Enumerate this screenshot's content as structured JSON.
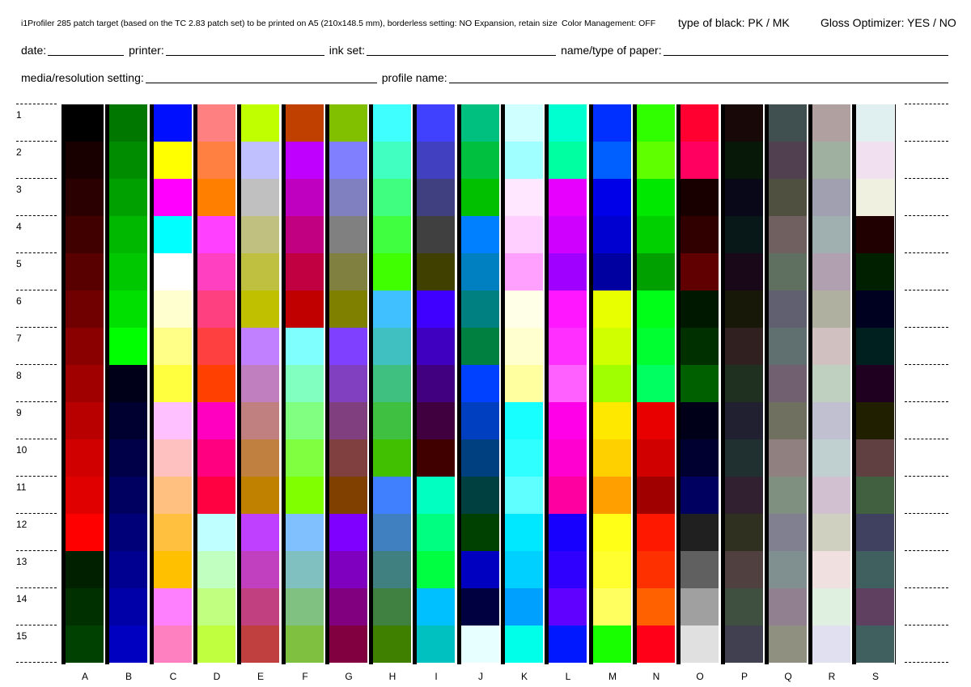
{
  "header": {
    "title": "i1Profiler 285 patch target (based on the TC 2.83 patch set) to be printed on A5 (210x148.5 mm), borderless setting: NO Expansion, retain size",
    "color_management": "Color Management: OFF",
    "type_of_black": "type of black:  PK / MK",
    "gloss_optimizer": "Gloss Optimizer: YES / NO"
  },
  "fields_row1": [
    {
      "label": "date:",
      "width": 94
    },
    {
      "label": "printer:",
      "width": 196
    },
    {
      "label": "ink set:",
      "width": 234
    },
    {
      "label": "name/type of paper:",
      "width": 0
    }
  ],
  "fields_row2": [
    {
      "label": "media/resolution setting:",
      "width": 286
    },
    {
      "label": "profile name:",
      "width": 0
    }
  ],
  "rows": [
    "1",
    "2",
    "3",
    "4",
    "5",
    "6",
    "7",
    "8",
    "9",
    "10",
    "11",
    "12",
    "13",
    "14",
    "15"
  ],
  "columns": [
    {
      "label": "A",
      "patches": [
        "#000000",
        "#180000",
        "#2a0000",
        "#400000",
        "#580000",
        "#700000",
        "#8a0000",
        "#a00000",
        "#b80000",
        "#d00000",
        "#e00000",
        "#fe0000",
        "#002000",
        "#003000",
        "#004000"
      ]
    },
    {
      "label": "B",
      "patches": [
        "#007800",
        "#008c00",
        "#00a000",
        "#00b800",
        "#00c800",
        "#00e000",
        "#00ff00",
        "#000018",
        "#000030",
        "#000048",
        "#000060",
        "#000078",
        "#000090",
        "#0000a8",
        "#0000c0"
      ]
    },
    {
      "label": "C",
      "patches": [
        "#0010ff",
        "#ffff00",
        "#ff00ff",
        "#00ffff",
        "#ffffff",
        "#ffffd0",
        "#ffff88",
        "#ffff40",
        "#ffc0ff",
        "#ffc0c0",
        "#ffc080",
        "#ffc040",
        "#ffc000",
        "#ff80ff",
        "#ff80c0"
      ]
    },
    {
      "label": "D",
      "patches": [
        "#ff8080",
        "#ff8040",
        "#ff8000",
        "#ff40ff",
        "#ff40c0",
        "#ff4080",
        "#ff4040",
        "#ff4000",
        "#ff00c0",
        "#ff0080",
        "#ff0040",
        "#c0ffff",
        "#c0ffc0",
        "#c0ff80",
        "#c0ff40"
      ]
    },
    {
      "label": "E",
      "patches": [
        "#c0ff00",
        "#c0c0ff",
        "#c0c0c0",
        "#c0c080",
        "#c0c040",
        "#c0c000",
        "#c080ff",
        "#c080c0",
        "#c08080",
        "#c08040",
        "#c08000",
        "#c040ff",
        "#c040c0",
        "#c04080",
        "#c04040"
      ]
    },
    {
      "label": "F",
      "patches": [
        "#c04000",
        "#c000ff",
        "#c000c0",
        "#c00080",
        "#c00040",
        "#c00000",
        "#80ffff",
        "#80ffc0",
        "#80ff80",
        "#80ff40",
        "#80ff00",
        "#80c0ff",
        "#80c0c0",
        "#80c080",
        "#80c040"
      ]
    },
    {
      "label": "G",
      "patches": [
        "#80c000",
        "#8080ff",
        "#8080c0",
        "#808080",
        "#808040",
        "#808000",
        "#8040ff",
        "#8040c0",
        "#804080",
        "#804040",
        "#804000",
        "#8000ff",
        "#8000c0",
        "#800080",
        "#800040"
      ]
    },
    {
      "label": "H",
      "patches": [
        "#40ffff",
        "#40ffc0",
        "#40ff80",
        "#40ff40",
        "#40ff00",
        "#40c0ff",
        "#40c0c0",
        "#40c080",
        "#40c040",
        "#40c000",
        "#4080ff",
        "#4080c0",
        "#408080",
        "#408040",
        "#408000"
      ]
    },
    {
      "label": "I",
      "patches": [
        "#4040ff",
        "#4040c0",
        "#404080",
        "#404040",
        "#404000",
        "#4000ff",
        "#4000c0",
        "#400080",
        "#400040",
        "#400000",
        "#00ffc0",
        "#00ff80",
        "#00ff40",
        "#00c0ff",
        "#00c0c0"
      ]
    },
    {
      "label": "J",
      "patches": [
        "#00c080",
        "#00c040",
        "#00c000",
        "#0080ff",
        "#0080c0",
        "#008080",
        "#008040",
        "#0040ff",
        "#0040c0",
        "#004080",
        "#004040",
        "#004000",
        "#0000c0",
        "#000040",
        "#e8ffff"
      ]
    },
    {
      "label": "K",
      "patches": [
        "#d0ffff",
        "#a0ffff",
        "#ffe8ff",
        "#ffd0ff",
        "#ffa0ff",
        "#ffffe8",
        "#ffffd0",
        "#ffffa0",
        "#18ffff",
        "#30ffff",
        "#60ffff",
        "#00e8ff",
        "#00d0ff",
        "#00a0ff",
        "#00ffe8"
      ]
    },
    {
      "label": "L",
      "patches": [
        "#00ffd0",
        "#00ffa0",
        "#e800ff",
        "#d000ff",
        "#a000ff",
        "#ff18ff",
        "#ff30ff",
        "#ff60ff",
        "#ff00e8",
        "#ff00d0",
        "#ff00a0",
        "#1800ff",
        "#3000ff",
        "#6000ff",
        "#0018ff"
      ]
    },
    {
      "label": "M",
      "patches": [
        "#0030ff",
        "#0060ff",
        "#0000e8",
        "#0000d0",
        "#0000a0",
        "#e8ff00",
        "#d0ff00",
        "#a0ff00",
        "#ffe800",
        "#ffd000",
        "#ffa000",
        "#ffff18",
        "#ffff30",
        "#ffff60",
        "#18ff00"
      ]
    },
    {
      "label": "N",
      "patches": [
        "#30ff00",
        "#60ff00",
        "#00e800",
        "#00d000",
        "#00a000",
        "#00ff18",
        "#00ff30",
        "#00ff60",
        "#e80000",
        "#d00000",
        "#a00000",
        "#ff1800",
        "#ff3000",
        "#ff6000",
        "#ff0018"
      ]
    },
    {
      "label": "O",
      "patches": [
        "#ff0030",
        "#ff0060",
        "#180000",
        "#300000",
        "#600000",
        "#001800",
        "#003000",
        "#006000",
        "#000018",
        "#000030",
        "#000060",
        "#202020",
        "#606060",
        "#a0a0a0",
        "#e0e0e0"
      ]
    },
    {
      "label": "P",
      "patches": [
        "#180808",
        "#081808",
        "#080818",
        "#081818",
        "#180818",
        "#181808",
        "#302020",
        "#203020",
        "#202030",
        "#203030",
        "#302030",
        "#303020",
        "#504040",
        "#405040",
        "#404050"
      ]
    },
    {
      "label": "Q",
      "patches": [
        "#405050",
        "#504050",
        "#505040",
        "#706060",
        "#607060",
        "#606070",
        "#607070",
        "#706070",
        "#707060",
        "#908080",
        "#809080",
        "#808090",
        "#809090",
        "#908090",
        "#909080"
      ]
    },
    {
      "label": "R",
      "patches": [
        "#b0a0a0",
        "#a0b0a0",
        "#a0a0b0",
        "#a0b0b0",
        "#b0a0b0",
        "#b0b0a0",
        "#d0c0c0",
        "#c0d0c0",
        "#c0c0d0",
        "#c0d0d0",
        "#d0c0d0",
        "#d0d0c0",
        "#f0e0e0",
        "#e0f0e0",
        "#e0e0f0"
      ]
    },
    {
      "label": "S",
      "patches": [
        "#e0f0f0",
        "#f0e0f0",
        "#f0f0e0",
        "#200000",
        "#002000",
        "#000020",
        "#002020",
        "#200020",
        "#202000",
        "#604040",
        "#406040",
        "#404060",
        "#406060",
        "#604060",
        "#406060"
      ]
    }
  ]
}
